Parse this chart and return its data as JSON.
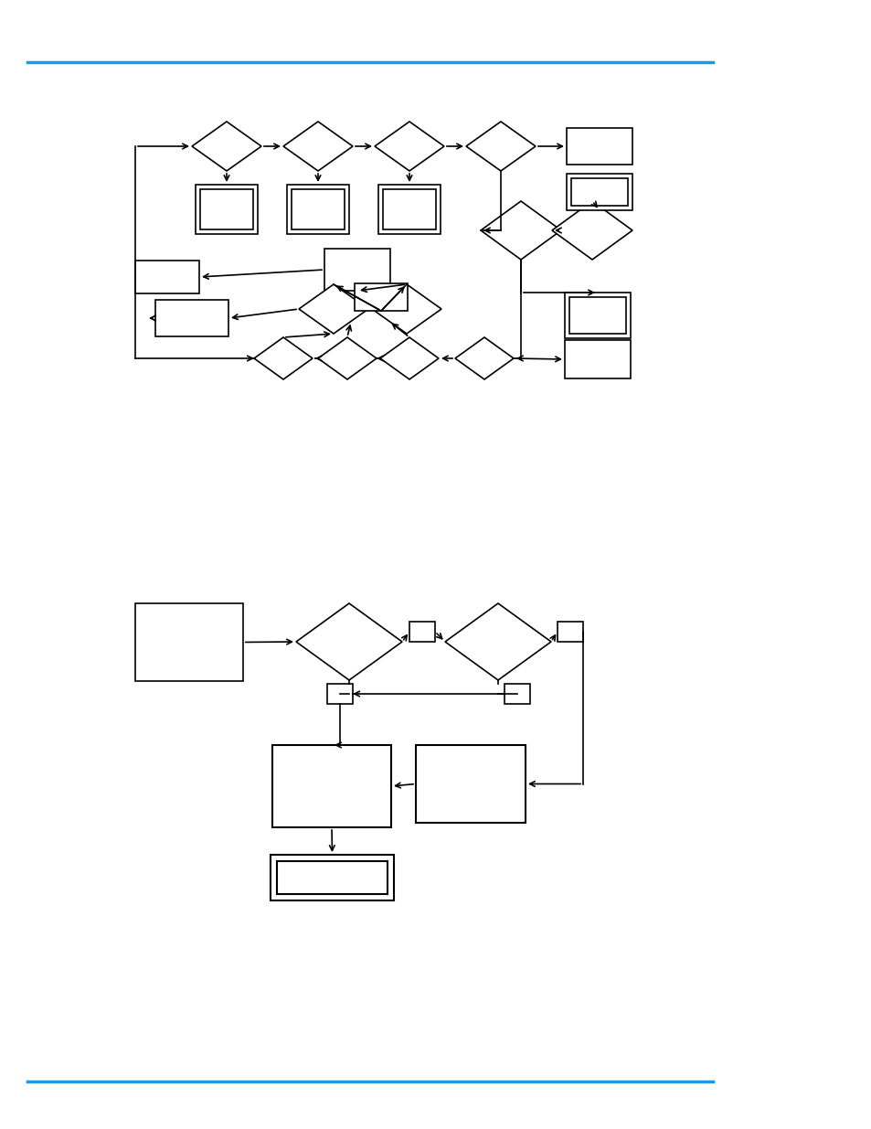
{
  "bg_color": "#ffffff",
  "line_color": "#000000",
  "blue_line_color": "#1a9ae0",
  "fig_width": 9.54,
  "fig_height": 12.35,
  "dpi": 100
}
